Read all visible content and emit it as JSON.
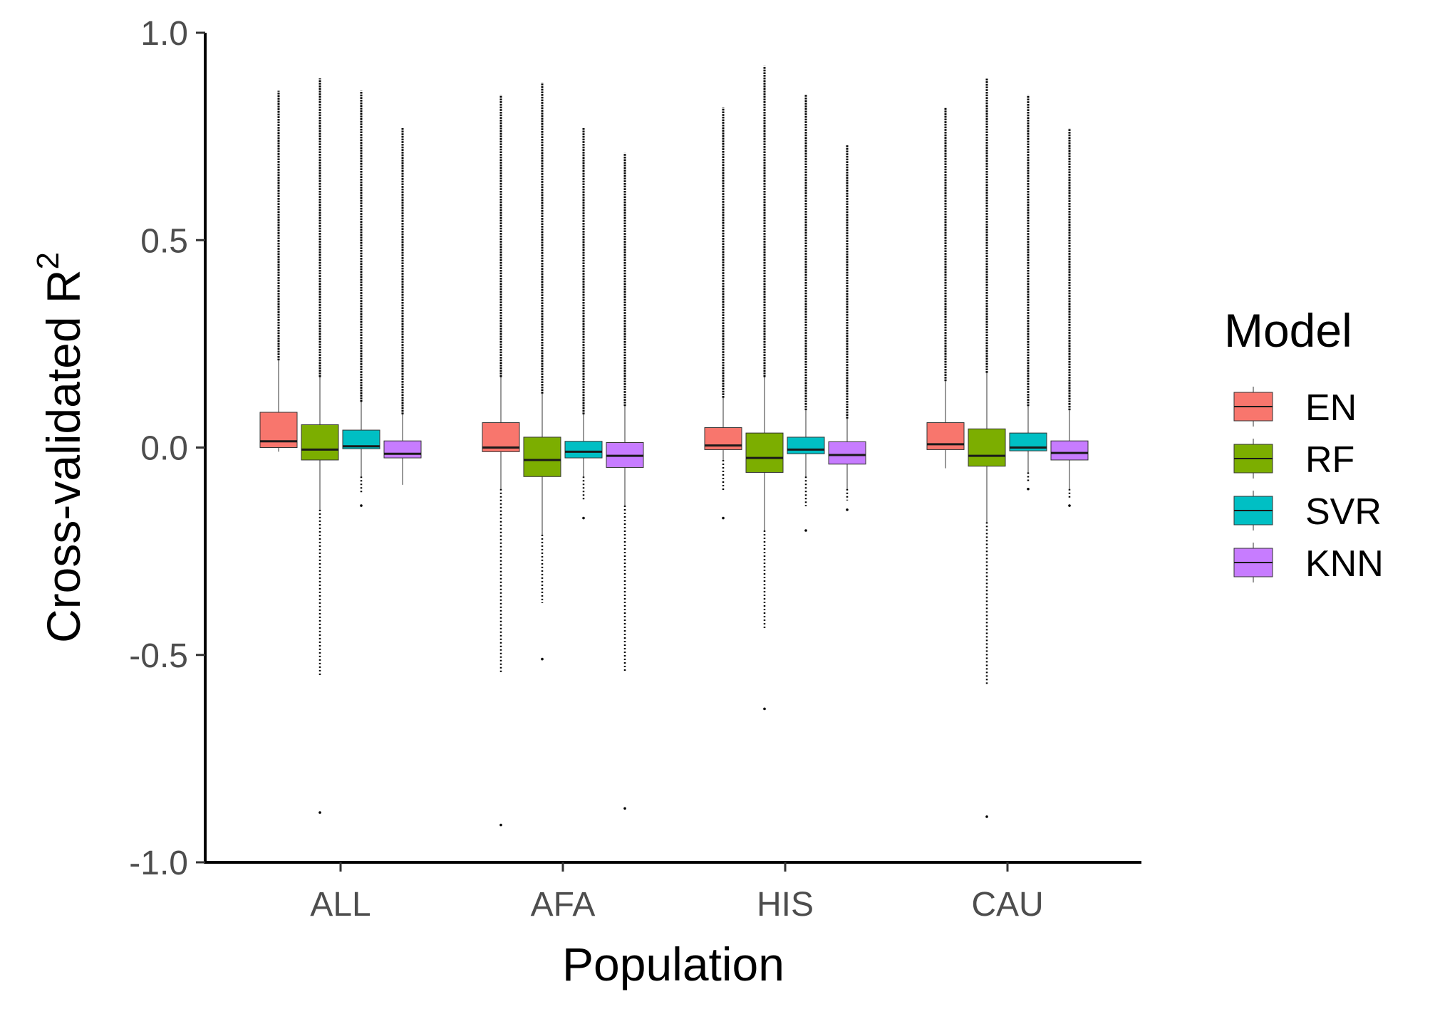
{
  "chart_data": {
    "type": "box",
    "xlabel": "Population",
    "ylabel": "Cross-validated R",
    "ylabel_superscript": "2",
    "ylim": [
      -1.0,
      1.0
    ],
    "yticks": [
      "-1.0",
      "-0.5",
      "0.0",
      "0.5",
      "1.0"
    ],
    "categories": [
      "ALL",
      "AFA",
      "HIS",
      "CAU"
    ],
    "legend": {
      "title": "Model",
      "position": "right"
    },
    "grid": false,
    "series": [
      {
        "name": "EN",
        "color": "#F8766D",
        "boxes": [
          {
            "category": "ALL",
            "whisker_low": -0.01,
            "q1": 0.0,
            "median": 0.015,
            "q3": 0.085,
            "whisker_high": 0.21,
            "outliers_max": 0.86
          },
          {
            "category": "AFA",
            "whisker_low": -0.1,
            "q1": -0.01,
            "median": 0.0,
            "q3": 0.06,
            "whisker_high": 0.17,
            "outliers_max": 0.85,
            "outliers_min": -0.91
          },
          {
            "category": "HIS",
            "whisker_low": -0.03,
            "q1": -0.005,
            "median": 0.005,
            "q3": 0.048,
            "whisker_high": 0.12,
            "outliers_max": 0.82,
            "outliers_min": -0.17
          },
          {
            "category": "CAU",
            "whisker_low": -0.05,
            "q1": -0.005,
            "median": 0.008,
            "q3": 0.06,
            "whisker_high": 0.16,
            "outliers_max": 0.82
          }
        ]
      },
      {
        "name": "RF",
        "color": "#7CAE00",
        "boxes": [
          {
            "category": "ALL",
            "whisker_low": -0.15,
            "q1": -0.03,
            "median": -0.005,
            "q3": 0.055,
            "whisker_high": 0.17,
            "outliers_max": 0.89,
            "outliers_min": -0.88
          },
          {
            "category": "AFA",
            "whisker_low": -0.21,
            "q1": -0.07,
            "median": -0.03,
            "q3": 0.025,
            "whisker_high": 0.13,
            "outliers_max": 0.88,
            "outliers_min": -0.51
          },
          {
            "category": "HIS",
            "whisker_low": -0.2,
            "q1": -0.06,
            "median": -0.025,
            "q3": 0.035,
            "whisker_high": 0.17,
            "outliers_max": 0.92,
            "outliers_min": -0.63
          },
          {
            "category": "CAU",
            "whisker_low": -0.18,
            "q1": -0.045,
            "median": -0.02,
            "q3": 0.045,
            "whisker_high": 0.18,
            "outliers_max": 0.89,
            "outliers_min": -0.89
          }
        ]
      },
      {
        "name": "SVR",
        "color": "#00BFC4",
        "boxes": [
          {
            "category": "ALL",
            "whisker_low": -0.07,
            "q1": -0.003,
            "median": 0.003,
            "q3": 0.042,
            "whisker_high": 0.11,
            "outliers_max": 0.86,
            "outliers_min": -0.14
          },
          {
            "category": "AFA",
            "whisker_low": -0.07,
            "q1": -0.025,
            "median": -0.01,
            "q3": 0.015,
            "whisker_high": 0.08,
            "outliers_max": 0.77,
            "outliers_min": -0.17
          },
          {
            "category": "HIS",
            "whisker_low": -0.07,
            "q1": -0.015,
            "median": -0.005,
            "q3": 0.025,
            "whisker_high": 0.09,
            "outliers_max": 0.85,
            "outliers_min": -0.2
          },
          {
            "category": "CAU",
            "whisker_low": -0.06,
            "q1": -0.008,
            "median": 0.0,
            "q3": 0.035,
            "whisker_high": 0.1,
            "outliers_max": 0.85,
            "outliers_min": -0.1
          }
        ]
      },
      {
        "name": "KNN",
        "color": "#C77CFF",
        "boxes": [
          {
            "category": "ALL",
            "whisker_low": -0.09,
            "q1": -0.025,
            "median": -0.015,
            "q3": 0.016,
            "whisker_high": 0.08,
            "outliers_max": 0.77
          },
          {
            "category": "AFA",
            "whisker_low": -0.14,
            "q1": -0.048,
            "median": -0.02,
            "q3": 0.012,
            "whisker_high": 0.1,
            "outliers_max": 0.71,
            "outliers_min": -0.87
          },
          {
            "category": "HIS",
            "whisker_low": -0.1,
            "q1": -0.04,
            "median": -0.018,
            "q3": 0.014,
            "whisker_high": 0.07,
            "outliers_max": 0.73,
            "outliers_min": -0.15
          },
          {
            "category": "CAU",
            "whisker_low": -0.1,
            "q1": -0.03,
            "median": -0.013,
            "q3": 0.016,
            "whisker_high": 0.09,
            "outliers_max": 0.77,
            "outliers_min": -0.14
          }
        ]
      }
    ]
  }
}
